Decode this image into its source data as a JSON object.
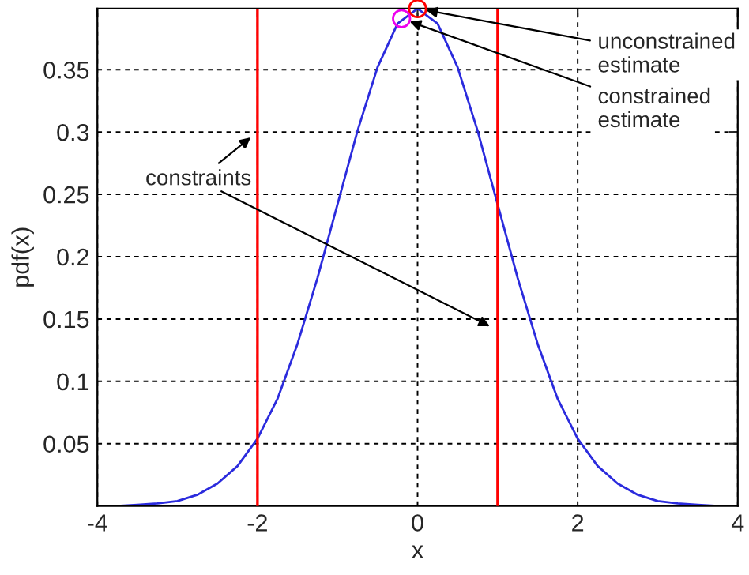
{
  "chart_data": {
    "type": "line",
    "xlabel": "x",
    "ylabel": "pdf(x)",
    "xlim": [
      -4,
      4
    ],
    "ylim": [
      0,
      0.399
    ],
    "xticks": [
      -4,
      -2,
      0,
      2,
      4
    ],
    "yticks": [
      0.05,
      0.1,
      0.15,
      0.2,
      0.25,
      0.3,
      0.35
    ],
    "grid": true,
    "legend": false,
    "series": [
      {
        "color": "#2b2bdd",
        "marker": "none",
        "x": [
          -4,
          -3.75,
          -3.5,
          -3.25,
          -3,
          -2.75,
          -2.5,
          -2.25,
          -2,
          -1.75,
          -1.5,
          -1.25,
          -1,
          -0.75,
          -0.5,
          -0.25,
          0,
          0.25,
          0.5,
          0.75,
          1,
          1.25,
          1.5,
          1.75,
          2,
          2.25,
          2.5,
          2.75,
          3,
          3.25,
          3.5,
          3.75,
          4
        ],
        "values": [
          0,
          0,
          0.001,
          0.002,
          0.004,
          0.009,
          0.018,
          0.032,
          0.054,
          0.086,
          0.13,
          0.183,
          0.242,
          0.301,
          0.352,
          0.387,
          0.399,
          0.387,
          0.352,
          0.301,
          0.242,
          0.183,
          0.13,
          0.086,
          0.054,
          0.032,
          0.018,
          0.009,
          0.004,
          0.002,
          0.001,
          0,
          0
        ]
      },
      {
        "type": "scatter",
        "color": "#ff0000",
        "marker": "circle",
        "x": [
          0
        ],
        "values": [
          0.399
        ]
      },
      {
        "type": "scatter",
        "color": "#ee00ee",
        "marker": "circle",
        "x": [
          -0.2
        ],
        "values": [
          0.391
        ]
      }
    ],
    "ref_lines": [
      {
        "axis": "x",
        "value": -2,
        "color": "#ff0000"
      },
      {
        "axis": "x",
        "value": 1,
        "color": "#ff0000"
      }
    ],
    "annotations": [
      {
        "text": "unconstrained\nestimate",
        "x": 0,
        "y": 0.399
      },
      {
        "text": "constrained\nestimate",
        "x": -0.2,
        "y": 0.391
      },
      {
        "text": "constraints",
        "x": -2,
        "y": 0.3
      }
    ]
  }
}
